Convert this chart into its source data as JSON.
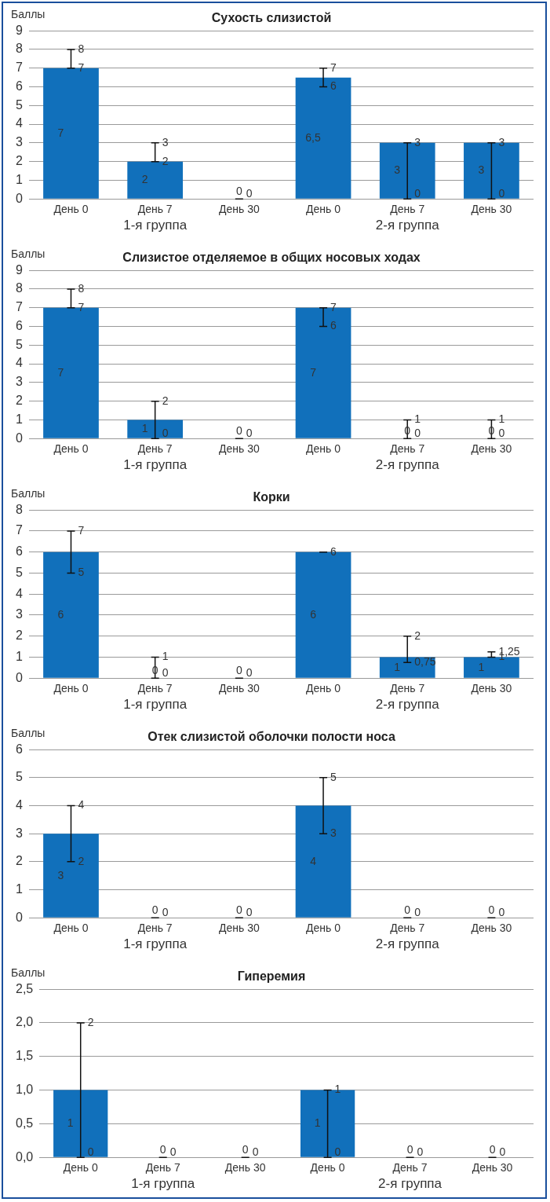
{
  "chart_data": [
    {
      "type": "bar",
      "title": "Сухость слизистой",
      "ylabel": "Баллы",
      "categories": [
        "День 0",
        "День 7",
        "День 30",
        "День 0",
        "День 7",
        "День 30"
      ],
      "values": [
        7,
        2,
        0,
        6.5,
        3,
        3
      ],
      "value_labels": [
        "7",
        "2",
        "0",
        "6,5",
        "3",
        "3"
      ],
      "errors": [
        [
          7,
          8
        ],
        [
          2,
          3
        ],
        [
          0,
          0
        ],
        [
          6,
          7
        ],
        [
          0,
          3
        ],
        [
          0,
          3
        ]
      ],
      "color": "#1170bb",
      "ylim": [
        0,
        9
      ],
      "yticks": [
        0,
        1,
        2,
        3,
        4,
        5,
        6,
        7,
        8,
        9
      ],
      "grid": "y",
      "legend": false,
      "annotations": [
        "1-я группа",
        "2-я группа",
        "8",
        "7",
        "3",
        "2",
        "0",
        "7",
        "6",
        "3",
        "0",
        "3",
        "0"
      ]
    },
    {
      "type": "bar",
      "title": "Слизистое отделяемое в общих носовых ходах",
      "ylabel": "Баллы",
      "categories": [
        "День 0",
        "День 7",
        "День 30",
        "День 0",
        "День 7",
        "День 30"
      ],
      "values": [
        7,
        1,
        0,
        7,
        0,
        0
      ],
      "value_labels": [
        "7",
        "1",
        "0",
        "7",
        "0",
        "0"
      ],
      "errors": [
        [
          7,
          8
        ],
        [
          0,
          2
        ],
        [
          0,
          0
        ],
        [
          6,
          7
        ],
        [
          0,
          1
        ],
        [
          0,
          1
        ]
      ],
      "color": "#1170bb",
      "ylim": [
        0,
        9
      ],
      "yticks": [
        0,
        1,
        2,
        3,
        4,
        5,
        6,
        7,
        8,
        9
      ],
      "grid": "y",
      "legend": false,
      "annotations": [
        "1-я группа",
        "2-я группа",
        "8",
        "7",
        "2",
        "0",
        "0",
        "7",
        "6",
        "1",
        "0",
        "1",
        "0"
      ]
    },
    {
      "type": "bar",
      "title": "Корки",
      "ylabel": "Баллы",
      "categories": [
        "День 0",
        "День 7",
        "День 30",
        "День 0",
        "День 7",
        "День 30"
      ],
      "values": [
        6,
        0,
        0,
        6,
        1,
        1
      ],
      "value_labels": [
        "6",
        "0",
        "0",
        "6",
        "1",
        "1"
      ],
      "errors": [
        [
          5,
          7
        ],
        [
          0,
          1
        ],
        [
          0,
          0
        ],
        [
          6,
          6
        ],
        [
          0.75,
          2
        ],
        [
          1,
          1.25
        ]
      ],
      "color": "#1170bb",
      "ylim": [
        0,
        8
      ],
      "yticks": [
        0,
        1,
        2,
        3,
        4,
        5,
        6,
        7,
        8
      ],
      "grid": "y",
      "legend": false,
      "annotations": [
        "1-я группа",
        "2-я группа",
        "7",
        "5",
        "1",
        "0",
        "0",
        "6",
        "2",
        "0,75",
        "1,25",
        "1"
      ]
    },
    {
      "type": "bar",
      "title": "Отек слизистой оболочки полости носа",
      "ylabel": "Баллы",
      "categories": [
        "День 0",
        "День 7",
        "День 30",
        "День 0",
        "День 7",
        "День 30"
      ],
      "values": [
        3,
        0,
        0,
        4,
        0,
        0
      ],
      "value_labels": [
        "3",
        "0",
        "0",
        "4",
        "0",
        "0"
      ],
      "errors": [
        [
          2,
          4
        ],
        [
          0,
          0
        ],
        [
          0,
          0
        ],
        [
          3,
          5
        ],
        [
          0,
          0
        ],
        [
          0,
          0
        ]
      ],
      "color": "#1170bb",
      "ylim": [
        0,
        6
      ],
      "yticks": [
        0,
        1,
        2,
        3,
        4,
        5,
        6
      ],
      "grid": "y",
      "legend": false,
      "annotations": [
        "1-я группа",
        "2-я группа",
        "4",
        "2",
        "0",
        "0",
        "5",
        "3",
        "0",
        "0"
      ]
    },
    {
      "type": "bar",
      "title": "Гиперемия",
      "ylabel": "Баллы",
      "categories": [
        "День 0",
        "День 7",
        "День 30",
        "День 0",
        "День 7",
        "День 30"
      ],
      "values": [
        1,
        0,
        0,
        1,
        0,
        0
      ],
      "value_labels": [
        "1",
        "0",
        "0",
        "1",
        "0",
        "0"
      ],
      "errors": [
        [
          0,
          2
        ],
        [
          0,
          0
        ],
        [
          0,
          0
        ],
        [
          0,
          1
        ],
        [
          0,
          0
        ],
        [
          0,
          0
        ]
      ],
      "color": "#1170bb",
      "ylim": [
        0,
        2.5
      ],
      "yticks": [
        {
          "value": 0,
          "label": "0,0"
        },
        {
          "value": 0.5,
          "label": "0,5"
        },
        {
          "value": 1,
          "label": "1,0"
        },
        {
          "value": 1.5,
          "label": "1,5"
        },
        {
          "value": 2,
          "label": "2,0"
        },
        {
          "value": 2.5,
          "label": "2,5"
        }
      ],
      "grid": "y",
      "legend": false,
      "annotations": [
        "1-я группа",
        "2-я группа",
        "2",
        "0",
        "0",
        "0",
        "1",
        "0",
        "0",
        "0"
      ]
    }
  ]
}
